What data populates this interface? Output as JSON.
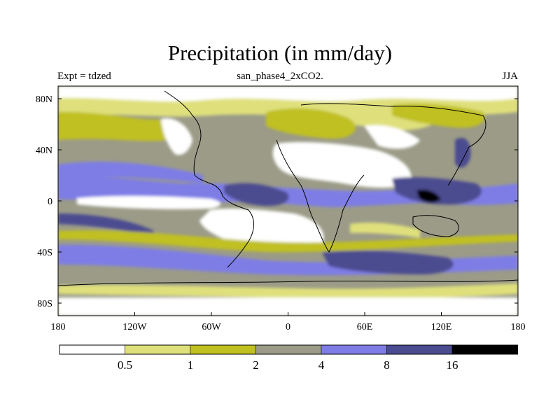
{
  "title": "Precipitation (in mm/day)",
  "left_label": "Expt = tdzed",
  "center_label": "san_phase4_2xCO2.",
  "right_label": "JJA",
  "lat_ticks": [
    "80N",
    "40N",
    "0",
    "40S",
    "80S"
  ],
  "lon_ticks": [
    "180",
    "120W",
    "60W",
    "0",
    "60E",
    "120E",
    "180"
  ],
  "legend": {
    "labels": [
      "0.5",
      "1",
      "2",
      "4",
      "8",
      "16"
    ],
    "colors": [
      "#ffffff",
      "#dfe07c",
      "#c0c020",
      "#9b9b88",
      "#7e7de6",
      "#4b4b90",
      "#000000"
    ]
  },
  "colors": {
    "ocean_band_dry": "#ffffff",
    "light_yellow": "#dfe07c",
    "olive": "#c0c020",
    "gray": "#9b9b88",
    "blue": "#7e7de6",
    "dark_blue": "#4b4b90",
    "black": "#000000"
  }
}
